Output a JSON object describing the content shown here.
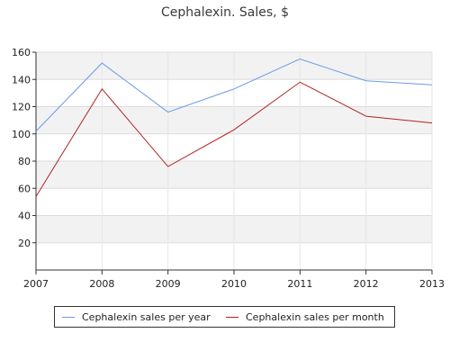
{
  "chart_data": {
    "type": "line",
    "title": "Cephalexin. Sales, $",
    "xlabel": "",
    "ylabel": "",
    "categories": [
      "2007",
      "2008",
      "2009",
      "2010",
      "2011",
      "2012",
      "2013"
    ],
    "ylim": [
      0,
      160
    ],
    "yticks": [
      20,
      40,
      60,
      80,
      100,
      120,
      140,
      160
    ],
    "grid": true,
    "legend_position": "bottom",
    "series": [
      {
        "name": "Cephalexin sales per year",
        "color": "#6a9ae8",
        "values": [
          102,
          152,
          116,
          133,
          155,
          139,
          136
        ]
      },
      {
        "name": "Cephalexin sales per month",
        "color": "#b22222",
        "values": [
          54,
          133,
          76,
          103,
          138,
          113,
          108
        ]
      }
    ]
  }
}
